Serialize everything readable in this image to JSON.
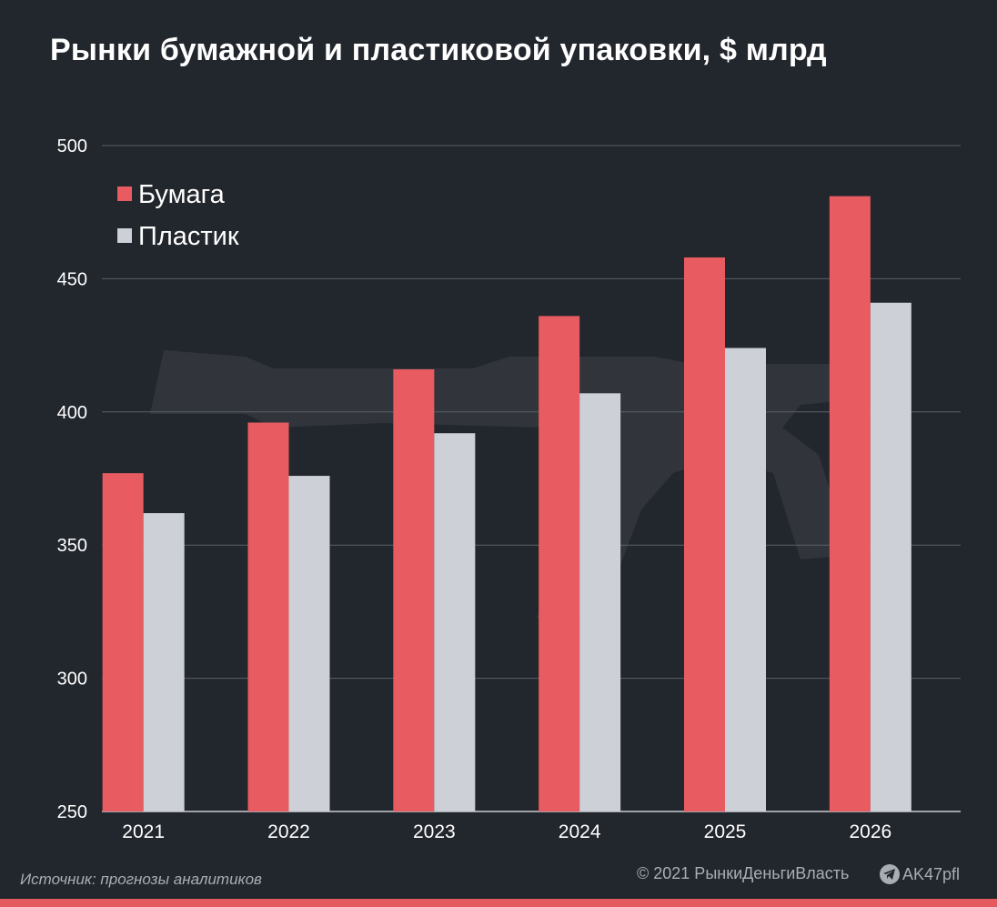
{
  "title": "Рынки бумажной и пластиковой упаковки, $ млрд",
  "source": "Источник: прогнозы аналитиков",
  "copyright": "© 2021  РынкиДеньгиВласть",
  "handle": "AK47pfl",
  "colors": {
    "background": "#22262d",
    "paper": "#e85c61",
    "plastic": "#cdd0d7",
    "grid": "#5b5f66",
    "accent_bar": "#e45a5f"
  },
  "chart_data": {
    "type": "bar",
    "title": "Рынки бумажной и пластиковой упаковки, $ млрд",
    "categories": [
      "2021",
      "2022",
      "2023",
      "2024",
      "2025",
      "2026"
    ],
    "series": [
      {
        "name": "Бумага",
        "values": [
          377,
          396,
          416,
          436,
          458,
          481
        ]
      },
      {
        "name": "Пластик",
        "values": [
          362,
          376,
          392,
          407,
          424,
          441
        ]
      }
    ],
    "ylim": [
      250,
      500
    ],
    "yticks": [
      250,
      300,
      350,
      400,
      450,
      500
    ],
    "grid": true,
    "legend_position": "top-left"
  }
}
